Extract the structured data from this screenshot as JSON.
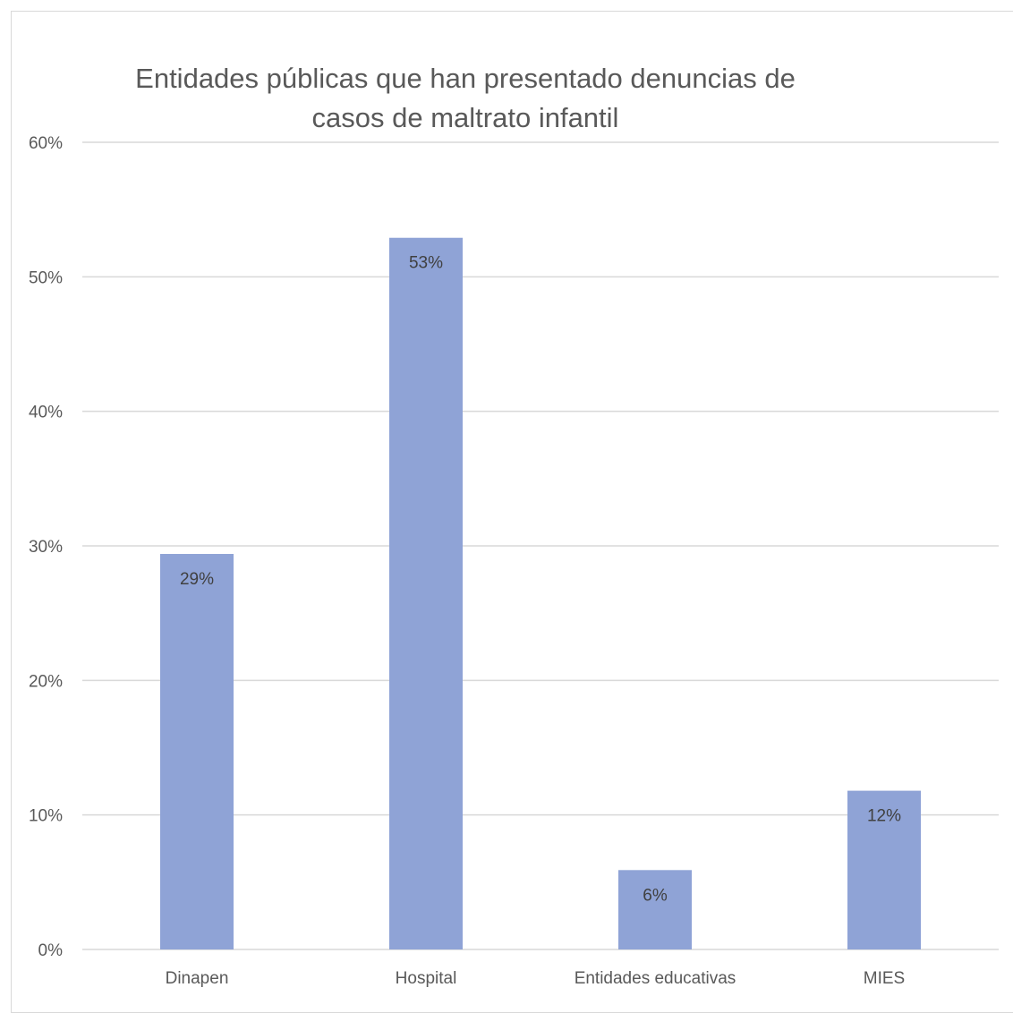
{
  "chart_data": {
    "type": "bar",
    "title_lines": [
      "Entidades públicas que han presentado denuncias de",
      "casos de maltrato infantil"
    ],
    "categories": [
      "Dinapen",
      "Hospital",
      "Entidades educativas",
      "MIES"
    ],
    "values": [
      0.294,
      0.529,
      0.059,
      0.118
    ],
    "data_labels": [
      "29%",
      "53%",
      "6%",
      "12%"
    ],
    "y_ticks": [
      0,
      0.1,
      0.2,
      0.3,
      0.4,
      0.5,
      0.6
    ],
    "y_tick_labels": [
      "0%",
      "10%",
      "20%",
      "30%",
      "40%",
      "50%",
      "60%"
    ],
    "ylim": [
      0,
      0.6
    ],
    "xlabel": "",
    "ylabel": "",
    "grid": true,
    "legend": "none",
    "bar_color": "#8fa3d6"
  }
}
